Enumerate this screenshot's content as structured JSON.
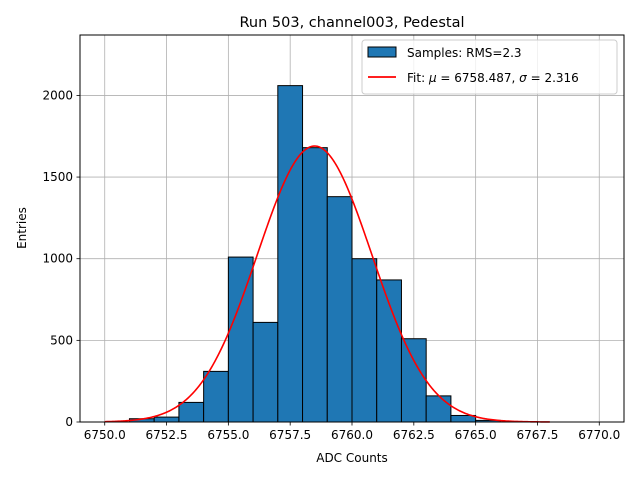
{
  "chart_data": {
    "type": "bar",
    "title": "Run 503, channel003, Pedestal",
    "xlabel": "ADC Counts",
    "ylabel": "Entries",
    "xlim": [
      6749.0,
      6771.0
    ],
    "ylim": [
      0,
      2370
    ],
    "x_ticks": [
      6750.0,
      6752.5,
      6755.0,
      6757.5,
      6760.0,
      6762.5,
      6765.0,
      6767.5,
      6770.0
    ],
    "x_tick_labels": [
      "6750.0",
      "6752.5",
      "6755.0",
      "6757.5",
      "6760.0",
      "6762.5",
      "6765.0",
      "6767.5",
      "6770.0"
    ],
    "y_ticks": [
      0,
      500,
      1000,
      1500,
      2000
    ],
    "y_tick_labels": [
      "0",
      "500",
      "1000",
      "1500",
      "2000"
    ],
    "grid": true,
    "legend_position": "top-right",
    "bin_width": 1.0,
    "series": [
      {
        "name": "Samples: RMS=2.3",
        "kind": "histogram",
        "color": "#1f77b4",
        "edgecolor": "#000000",
        "bin_starts": [
          6751,
          6752,
          6753,
          6754,
          6755,
          6756,
          6757,
          6758,
          6759,
          6760,
          6761,
          6762,
          6763,
          6764,
          6765
        ],
        "values": [
          20,
          30,
          120,
          310,
          1010,
          610,
          2060,
          1680,
          1380,
          1000,
          870,
          510,
          160,
          40,
          10
        ]
      },
      {
        "name": "Fit: μ = 6758.487, σ = 2.316",
        "legend_label": {
          "prefix": "Fit: ",
          "mu_symbol": "μ",
          "mu_text": " = 6758.487, ",
          "sigma_symbol": "σ",
          "sigma_text": " = 2.316"
        },
        "kind": "gaussian",
        "color": "#ff0000",
        "mu": 6758.487,
        "sigma": 2.316,
        "amplitude": 1690,
        "x_range": [
          6750.0,
          6768.0
        ]
      }
    ]
  }
}
